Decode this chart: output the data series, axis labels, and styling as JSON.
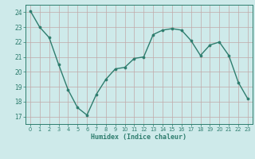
{
  "x": [
    0,
    1,
    2,
    3,
    4,
    5,
    6,
    7,
    8,
    9,
    10,
    11,
    12,
    13,
    14,
    15,
    16,
    17,
    18,
    19,
    20,
    21,
    22,
    23
  ],
  "y": [
    24.1,
    23.0,
    22.3,
    20.5,
    18.8,
    17.6,
    17.1,
    18.5,
    19.5,
    20.2,
    20.3,
    20.9,
    21.0,
    22.5,
    22.8,
    22.9,
    22.8,
    22.1,
    21.1,
    21.8,
    22.0,
    21.1,
    19.3,
    18.2
  ],
  "line_color": "#2e7d6e",
  "marker": "o",
  "marker_size": 2.2,
  "bg_color": "#ceeaea",
  "grid_color": "#c0a8a8",
  "axis_color": "#2e7d6e",
  "xlabel": "Humidex (Indice chaleur)",
  "xlim": [
    -0.5,
    23.5
  ],
  "ylim": [
    16.5,
    24.5
  ],
  "yticks": [
    17,
    18,
    19,
    20,
    21,
    22,
    23,
    24
  ],
  "xticks": [
    0,
    1,
    2,
    3,
    4,
    5,
    6,
    7,
    8,
    9,
    10,
    11,
    12,
    13,
    14,
    15,
    16,
    17,
    18,
    19,
    20,
    21,
    22,
    23
  ]
}
